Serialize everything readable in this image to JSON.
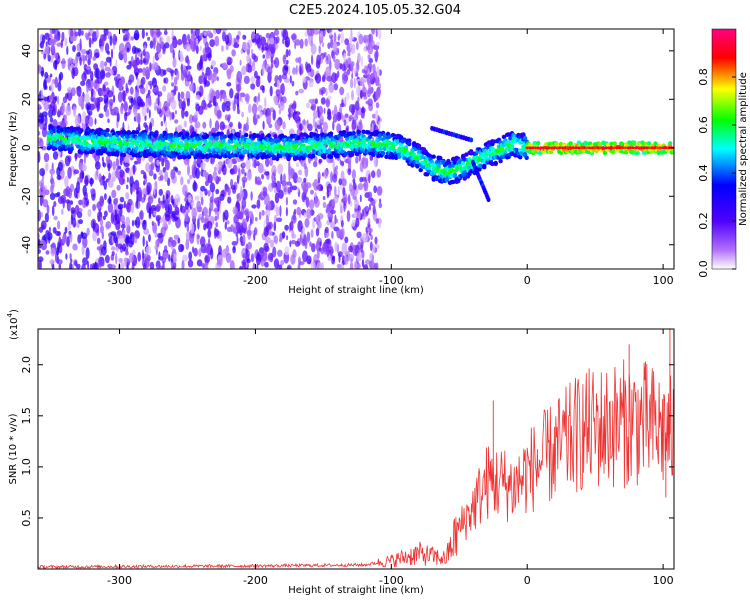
{
  "title": "C2E5.2024.105.05.32.G04",
  "chart_data": [
    {
      "type": "heatmap",
      "xlabel": "Height of straight line (km)",
      "ylabel": "Frequency (Hz)",
      "xlim": [
        -360,
        108
      ],
      "ylim": [
        -50,
        49
      ],
      "xticks": [
        "-300",
        "-200",
        "-100",
        "0",
        "100"
      ],
      "yticks": [
        "40",
        "20",
        "0",
        "-20",
        "-40"
      ],
      "colorbar": {
        "label": "Normalized spectral amplitude",
        "range": [
          0,
          1
        ],
        "ticks": [
          "0.0",
          "0.2",
          "0.4",
          "0.6",
          "0.8"
        ],
        "colors": [
          "#ffffff",
          "#8b00ff",
          "#0000ff",
          "#00ffff",
          "#00ff00",
          "#ffff00",
          "#ff0000",
          "#ff0080"
        ]
      },
      "ridge": {
        "x": [
          -350,
          -330,
          -300,
          -260,
          -220,
          -180,
          -150,
          -120,
          -100,
          -90,
          -80,
          -70,
          -60,
          -50,
          -40,
          -30,
          -20,
          -10,
          0,
          20,
          40,
          60,
          80,
          100,
          108
        ],
        "y": [
          4,
          3,
          2,
          1,
          1,
          0,
          1,
          2,
          1,
          -1,
          -4,
          -8,
          -10,
          -9,
          -6,
          -3,
          -1,
          2,
          0,
          0,
          0,
          0,
          0,
          0,
          0
        ]
      },
      "noise_region_x": [
        -360,
        -108
      ],
      "branch_upper": {
        "x": [
          -70,
          -40
        ],
        "y": [
          8,
          3
        ]
      },
      "branch_lower": {
        "x": [
          -40,
          -28
        ],
        "y": [
          -6,
          -22
        ]
      }
    },
    {
      "type": "line",
      "xlabel": "Height of straight line (km)",
      "ylabel": "SNR (10 * v/v)",
      "y_multiplier": "(x10",
      "y_multiplier_exp": "4",
      "y_multiplier_close": ")",
      "xlim": [
        -360,
        108
      ],
      "ylim": [
        0,
        2.35
      ],
      "xticks": [
        "-300",
        "-200",
        "-100",
        "0",
        "100"
      ],
      "yticks": [
        "0.5",
        "1.0",
        "1.5",
        "2.0"
      ],
      "color": "#ee3333",
      "envelope": {
        "x": [
          -360,
          -200,
          -120,
          -100,
          -80,
          -60,
          -50,
          -40,
          -30,
          -20,
          -10,
          0,
          20,
          40,
          60,
          80,
          100,
          108
        ],
        "y": [
          0.02,
          0.03,
          0.04,
          0.08,
          0.15,
          0.1,
          0.4,
          0.6,
          0.85,
          0.85,
          0.8,
          0.95,
          1.15,
          1.35,
          1.4,
          1.45,
          1.35,
          1.3
        ]
      },
      "spikes": [
        {
          "x": -25,
          "y": 1.65
        },
        {
          "x": 75,
          "y": 2.2
        },
        {
          "x": 105,
          "y": 2.35
        },
        {
          "x": 102,
          "y": 0.7
        }
      ]
    }
  ]
}
